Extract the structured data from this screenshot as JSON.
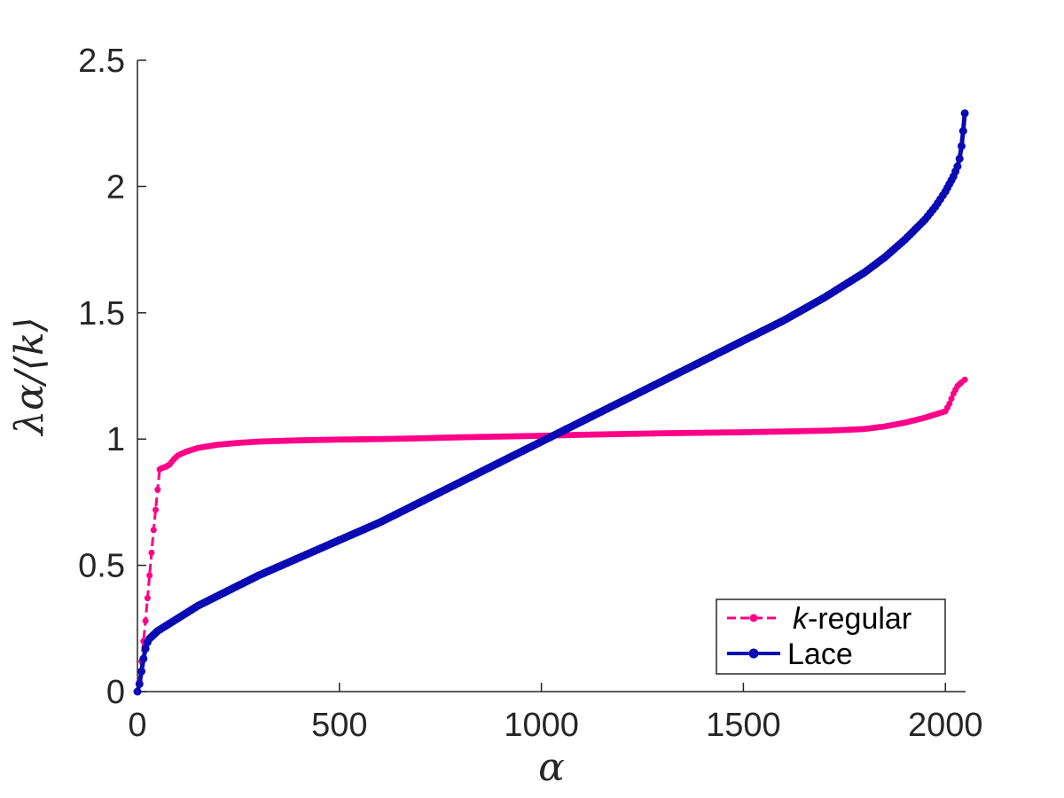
{
  "chart_data": {
    "type": "line",
    "xlabel": "α",
    "ylabel": "λα/⟨k⟩",
    "xlim": [
      0,
      2050
    ],
    "ylim": [
      0,
      2.5
    ],
    "xticks": [
      0,
      500,
      1000,
      1500,
      2000
    ],
    "xtick_labels": [
      "0",
      "500",
      "1000",
      "1500",
      "2000"
    ],
    "yticks": [
      0,
      0.5,
      1,
      1.5,
      2,
      2.5
    ],
    "ytick_labels": [
      "0",
      "0.5",
      "1",
      "1.5",
      "2",
      "2.5"
    ],
    "grid": false,
    "legend_position": "bottom-right",
    "series": [
      {
        "name": "k-regular",
        "name_italic_part": "k",
        "name_rest": "-regular",
        "color": "#ff0088",
        "line_style": "dashed",
        "marker": "dot",
        "x": [
          0,
          5,
          10,
          20,
          30,
          40,
          50,
          55,
          60,
          70,
          80,
          90,
          100,
          120,
          150,
          200,
          250,
          300,
          400,
          500,
          600,
          700,
          800,
          900,
          1000,
          1100,
          1200,
          1300,
          1400,
          1500,
          1600,
          1700,
          1750,
          1800,
          1850,
          1900,
          1950,
          1980,
          2000,
          2010,
          2020,
          2030,
          2040,
          2048
        ],
        "y": [
          0,
          0.04,
          0.12,
          0.28,
          0.46,
          0.64,
          0.8,
          0.88,
          0.885,
          0.89,
          0.9,
          0.92,
          0.935,
          0.95,
          0.965,
          0.978,
          0.985,
          0.99,
          0.995,
          0.998,
          1.0,
          1.003,
          1.007,
          1.01,
          1.013,
          1.017,
          1.02,
          1.023,
          1.025,
          1.027,
          1.03,
          1.033,
          1.036,
          1.04,
          1.05,
          1.065,
          1.085,
          1.1,
          1.11,
          1.14,
          1.18,
          1.21,
          1.225,
          1.235
        ]
      },
      {
        "name": "Lace",
        "color": "#0a0ab4",
        "line_style": "solid",
        "marker": "star",
        "x": [
          0,
          5,
          10,
          15,
          20,
          25,
          30,
          40,
          50,
          75,
          100,
          150,
          200,
          250,
          300,
          400,
          500,
          600,
          700,
          800,
          900,
          1000,
          1100,
          1200,
          1300,
          1400,
          1500,
          1600,
          1700,
          1800,
          1850,
          1900,
          1950,
          1975,
          2000,
          2010,
          2020,
          2030,
          2035,
          2040,
          2044,
          2048
        ],
        "y": [
          0,
          0.03,
          0.08,
          0.13,
          0.17,
          0.195,
          0.21,
          0.225,
          0.24,
          0.265,
          0.29,
          0.34,
          0.38,
          0.42,
          0.46,
          0.53,
          0.6,
          0.67,
          0.75,
          0.83,
          0.91,
          0.99,
          1.07,
          1.15,
          1.23,
          1.31,
          1.39,
          1.47,
          1.56,
          1.66,
          1.72,
          1.79,
          1.87,
          1.92,
          1.98,
          2.01,
          2.04,
          2.08,
          2.11,
          2.16,
          2.22,
          2.29
        ]
      }
    ]
  }
}
